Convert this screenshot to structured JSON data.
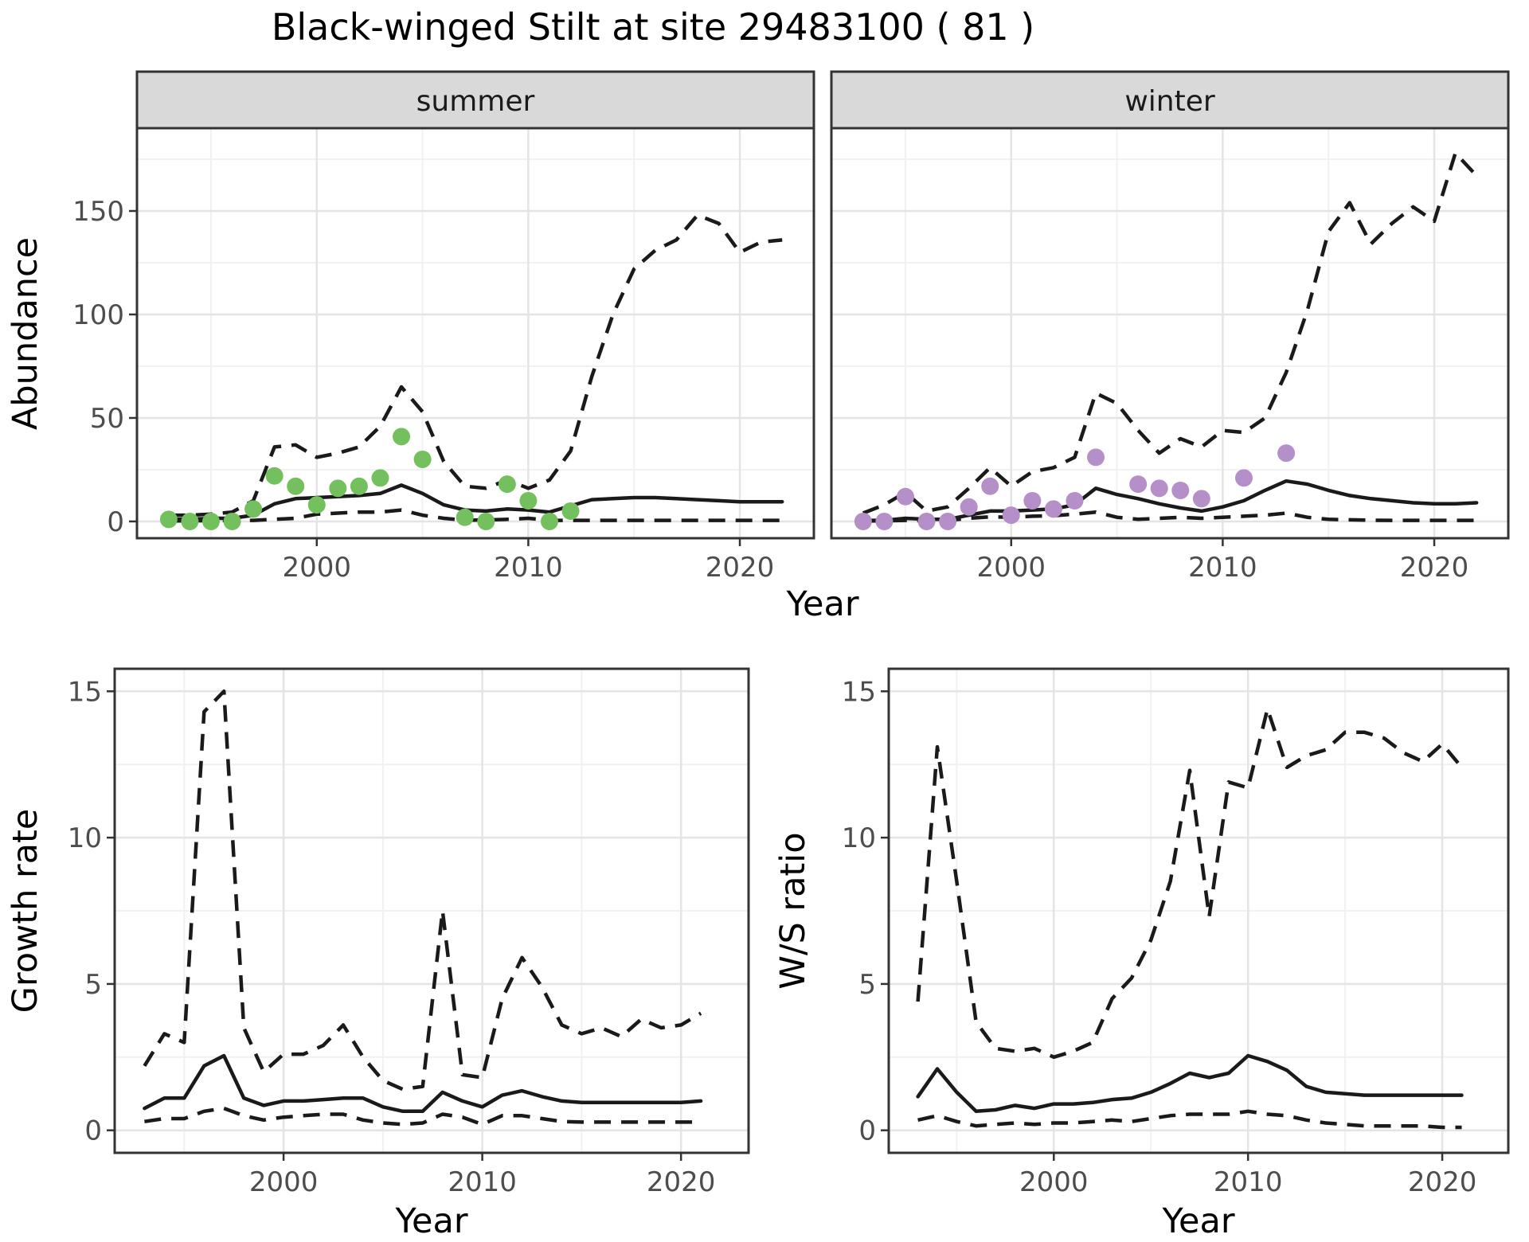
{
  "title": "Black-winged Stilt at site 29483100 ( 81 )",
  "facets": [
    "summer",
    "winter"
  ],
  "axis_titles": {
    "abundance": "Abundance",
    "growth": "Growth rate",
    "ws": "W/S ratio",
    "year": "Year"
  },
  "colors": {
    "summer_point": "#75c05e",
    "winter_point": "#b58fc8",
    "line": "#1a1a1a",
    "panel_border": "#333333",
    "strip_background": "#d9d9d9",
    "grid_major": "#e4e4e4",
    "grid_minor": "#f1f1f1",
    "tick_label": "#4d4d4d"
  },
  "chart_data": [
    {
      "name": "abundance-summer",
      "type": "line",
      "facet": "summer",
      "xlabel": "Year",
      "ylabel": "Abundance",
      "xlim": [
        1991.5,
        2023.5
      ],
      "ylim": [
        -8.1,
        190
      ],
      "xticks": {
        "values": [
          2000,
          2010,
          2020
        ],
        "labels": [
          "2000",
          "2010",
          "2020"
        ]
      },
      "yticks": {
        "values": [
          0,
          50,
          100,
          150
        ],
        "labels": [
          "0",
          "50",
          "100",
          "150"
        ]
      },
      "xminor": [
        1995,
        2005,
        2015
      ],
      "yminor": [
        25,
        75,
        125,
        175
      ],
      "years": [
        1993,
        1994,
        1995,
        1996,
        1997,
        1998,
        1999,
        2000,
        2001,
        2002,
        2003,
        2004,
        2005,
        2006,
        2007,
        2008,
        2009,
        2010,
        2011,
        2012,
        2013,
        2014,
        2015,
        2016,
        2017,
        2018,
        2019,
        2020,
        2021,
        2022
      ],
      "median": [
        1,
        1,
        1.5,
        1.5,
        3,
        8.5,
        11,
        11.5,
        12,
        12.5,
        13.5,
        17.5,
        13.5,
        8,
        5.5,
        5,
        6,
        5.5,
        4.5,
        7.5,
        10.5,
        11,
        11.5,
        11.5,
        11,
        10.5,
        10,
        9.5,
        9.5,
        9.5
      ],
      "lower": [
        0.3,
        0.3,
        0.4,
        0.4,
        0.5,
        1,
        1.5,
        3.5,
        4,
        4.5,
        4.5,
        5.5,
        3,
        1.5,
        0.6,
        0.7,
        1,
        1.5,
        0.5,
        0.5,
        0.5,
        0.5,
        0.5,
        0.5,
        0.5,
        0.5,
        0.5,
        0.5,
        0.5,
        0.5
      ],
      "upper": [
        3,
        3,
        3.5,
        4.5,
        10,
        36,
        37,
        31,
        33,
        36,
        46,
        65,
        53,
        29,
        17,
        16,
        20,
        16,
        20,
        34,
        70,
        100,
        122,
        131,
        136,
        148,
        144,
        130,
        135,
        136
      ],
      "points": [
        [
          1993,
          1
        ],
        [
          1994,
          0
        ],
        [
          1995,
          0
        ],
        [
          1996,
          0
        ],
        [
          1997,
          6
        ],
        [
          1998,
          22
        ],
        [
          1999,
          17
        ],
        [
          2000,
          8
        ],
        [
          2001,
          16
        ],
        [
          2002,
          17
        ],
        [
          2003,
          21
        ],
        [
          2004,
          41
        ],
        [
          2005,
          30
        ],
        [
          2007,
          2
        ],
        [
          2008,
          0
        ],
        [
          2009,
          18
        ],
        [
          2010,
          10
        ],
        [
          2011,
          0
        ],
        [
          2012,
          5
        ]
      ],
      "point_color": "#75c05e"
    },
    {
      "name": "abundance-winter",
      "type": "line",
      "facet": "winter",
      "xlabel": "Year",
      "ylabel": "Abundance",
      "xlim": [
        1991.5,
        2023.5
      ],
      "ylim": [
        -8.1,
        190
      ],
      "xticks": {
        "values": [
          2000,
          2010,
          2020
        ],
        "labels": [
          "2000",
          "2010",
          "2020"
        ]
      },
      "yticks": {
        "values": [
          0,
          50,
          100,
          150
        ],
        "labels": [
          "0",
          "50",
          "100",
          "150"
        ]
      },
      "xminor": [
        1995,
        2005,
        2015
      ],
      "yminor": [
        25,
        75,
        125,
        175
      ],
      "years": [
        1993,
        1994,
        1995,
        1996,
        1997,
        1998,
        1999,
        2000,
        2001,
        2002,
        2003,
        2004,
        2005,
        2006,
        2007,
        2008,
        2009,
        2010,
        2011,
        2012,
        2013,
        2014,
        2015,
        2016,
        2017,
        2018,
        2019,
        2020,
        2021,
        2022
      ],
      "median": [
        0.5,
        0.5,
        1.5,
        1,
        1,
        3,
        5,
        5,
        5.5,
        6,
        8,
        16,
        13,
        11,
        8.5,
        6.5,
        5,
        7,
        10,
        15,
        19.5,
        18,
        15,
        12.5,
        11,
        10,
        9,
        8.5,
        8.5,
        9
      ],
      "lower": [
        0.2,
        0.3,
        0.5,
        0.3,
        0.5,
        1.5,
        2.2,
        2,
        2.5,
        2.8,
        3.5,
        4.5,
        2,
        1,
        1.5,
        2,
        1.5,
        2,
        2.5,
        3,
        4,
        2,
        1,
        0.8,
        0.6,
        0.5,
        0.5,
        0.5,
        0.5,
        0.5
      ],
      "upper": [
        4,
        8,
        14,
        5,
        7,
        16,
        26,
        17,
        24,
        26,
        31,
        62,
        57,
        44,
        33,
        40,
        36,
        44,
        43,
        50,
        72,
        102,
        140,
        154,
        134,
        144,
        152,
        145,
        178,
        167
      ],
      "points": [
        [
          1993,
          0
        ],
        [
          1994,
          0
        ],
        [
          1995,
          12
        ],
        [
          1996,
          0
        ],
        [
          1997,
          0
        ],
        [
          1998,
          7
        ],
        [
          1999,
          17
        ],
        [
          2000,
          3
        ],
        [
          2001,
          10
        ],
        [
          2002,
          6
        ],
        [
          2003,
          10
        ],
        [
          2004,
          31
        ],
        [
          2006,
          18
        ],
        [
          2007,
          16
        ],
        [
          2008,
          15
        ],
        [
          2009,
          11
        ],
        [
          2011,
          21
        ],
        [
          2013,
          33
        ]
      ],
      "point_color": "#b58fc8"
    },
    {
      "name": "growth-rate",
      "type": "line",
      "xlabel": "Year",
      "ylabel": "Growth rate",
      "xlim": [
        1991.5,
        2023.4
      ],
      "ylim": [
        -0.77,
        15.77
      ],
      "xticks": {
        "values": [
          2000,
          2010,
          2020
        ],
        "labels": [
          "2000",
          "2010",
          "2020"
        ]
      },
      "yticks": {
        "values": [
          0,
          5,
          10,
          15
        ],
        "labels": [
          "0",
          "5",
          "10",
          "15"
        ]
      },
      "xminor": [
        1995,
        2005,
        2015
      ],
      "yminor": [
        2.5,
        7.5,
        12.5
      ],
      "years": [
        1993,
        1994,
        1995,
        1996,
        1997,
        1998,
        1999,
        2000,
        2001,
        2002,
        2003,
        2004,
        2005,
        2006,
        2007,
        2008,
        2009,
        2010,
        2011,
        2012,
        2013,
        2014,
        2015,
        2016,
        2017,
        2018,
        2019,
        2020,
        2021
      ],
      "median": [
        0.75,
        1.1,
        1.1,
        2.2,
        2.55,
        1.1,
        0.85,
        1,
        1,
        1.05,
        1.1,
        1.1,
        0.8,
        0.65,
        0.65,
        1.3,
        1,
        0.8,
        1.2,
        1.35,
        1.15,
        1,
        0.95,
        0.95,
        0.95,
        0.95,
        0.95,
        0.95,
        1
      ],
      "lower": [
        0.3,
        0.4,
        0.4,
        0.65,
        0.75,
        0.5,
        0.35,
        0.45,
        0.5,
        0.55,
        0.55,
        0.35,
        0.25,
        0.2,
        0.25,
        0.55,
        0.45,
        0.2,
        0.5,
        0.5,
        0.4,
        0.3,
        0.28,
        0.28,
        0.28,
        0.28,
        0.28,
        0.28,
        0.28
      ],
      "upper": [
        2.2,
        3.3,
        3,
        14.3,
        15,
        3.5,
        2,
        2.6,
        2.6,
        2.9,
        3.6,
        2.5,
        1.7,
        1.4,
        1.5,
        7.5,
        1.9,
        1.8,
        4.5,
        5.9,
        4.9,
        3.6,
        3.3,
        3.5,
        3.2,
        3.8,
        3.5,
        3.6,
        4
      ],
      "points": []
    },
    {
      "name": "ws-ratio",
      "type": "line",
      "xlabel": "Year",
      "ylabel": "W/S ratio",
      "xlim": [
        1991.5,
        2023.4
      ],
      "ylim": [
        -0.77,
        15.77
      ],
      "xticks": {
        "values": [
          2000,
          2010,
          2020
        ],
        "labels": [
          "2000",
          "2010",
          "2020"
        ]
      },
      "yticks": {
        "values": [
          0,
          5,
          10,
          15
        ],
        "labels": [
          "0",
          "5",
          "10",
          "15"
        ]
      },
      "xminor": [
        1995,
        2005,
        2015
      ],
      "yminor": [
        2.5,
        7.5,
        12.5
      ],
      "years": [
        1993,
        1994,
        1995,
        1996,
        1997,
        1998,
        1999,
        2000,
        2001,
        2002,
        2003,
        2004,
        2005,
        2006,
        2007,
        2008,
        2009,
        2010,
        2011,
        2012,
        2013,
        2014,
        2015,
        2016,
        2017,
        2018,
        2019,
        2020,
        2021
      ],
      "median": [
        1.15,
        2.1,
        1.3,
        0.65,
        0.7,
        0.85,
        0.75,
        0.9,
        0.9,
        0.95,
        1.05,
        1.1,
        1.3,
        1.6,
        1.95,
        1.8,
        1.95,
        2.55,
        2.35,
        2.05,
        1.5,
        1.3,
        1.25,
        1.2,
        1.2,
        1.2,
        1.2,
        1.2,
        1.2
      ],
      "lower": [
        0.35,
        0.5,
        0.3,
        0.15,
        0.2,
        0.25,
        0.2,
        0.25,
        0.25,
        0.3,
        0.35,
        0.3,
        0.4,
        0.5,
        0.55,
        0.55,
        0.55,
        0.65,
        0.55,
        0.5,
        0.35,
        0.25,
        0.2,
        0.15,
        0.15,
        0.15,
        0.15,
        0.1,
        0.1
      ],
      "upper": [
        4.4,
        13.1,
        8.5,
        3.7,
        2.8,
        2.7,
        2.8,
        2.5,
        2.7,
        3,
        4.5,
        5.2,
        6.5,
        8.5,
        12.3,
        7.3,
        11.9,
        11.7,
        14.4,
        12.4,
        12.8,
        13,
        13.6,
        13.6,
        13.4,
        12.9,
        12.6,
        13.2,
        12.4
      ],
      "points": []
    }
  ]
}
